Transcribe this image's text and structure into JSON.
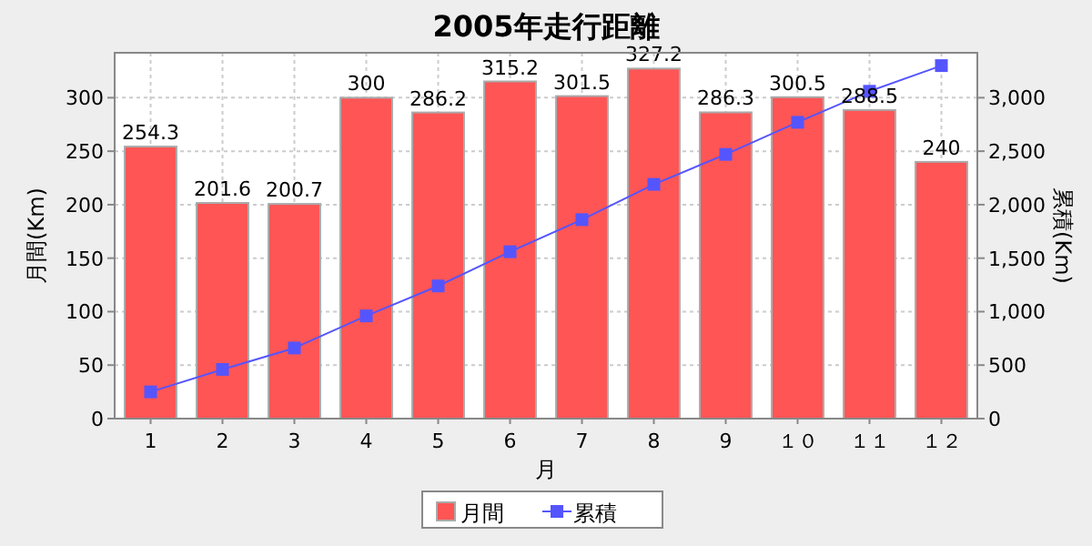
{
  "chart_data": {
    "type": "bar",
    "title": "2005年走行距離",
    "xlabel": "月",
    "ylabel": "月間(Km)",
    "y2label": "累積(Km)",
    "categories": [
      "1",
      "2",
      "3",
      "4",
      "5",
      "6",
      "7",
      "8",
      "9",
      "１０",
      "１１",
      "１２"
    ],
    "series": [
      {
        "name": "月間",
        "color": "#ff5555",
        "values": [
          254.3,
          201.6,
          200.7,
          300,
          286.2,
          315.2,
          301.5,
          327.2,
          286.3,
          300.5,
          288.5,
          240
        ],
        "data_labels": true
      },
      {
        "name": "累積",
        "type": "line",
        "axis": "y2",
        "color": "#5555ff",
        "marker": "square",
        "values": [
          250,
          460,
          660,
          960,
          1240,
          1560,
          1860,
          2190,
          2470,
          2770,
          3060,
          3300
        ]
      }
    ],
    "ylim": [
      0,
      342
    ],
    "yticks": [
      0,
      50,
      100,
      150,
      200,
      250,
      300
    ],
    "y2lim": [
      0,
      3420
    ],
    "y2ticks": [
      0,
      {
        "value": 500,
        "label": "500"
      },
      {
        "value": 1000,
        "label": "1,000"
      },
      {
        "value": 1500,
        "label": "1,500"
      },
      {
        "value": 2000,
        "label": "2,000"
      },
      {
        "value": 2500,
        "label": "2,500"
      },
      {
        "value": 3000,
        "label": "3,000"
      }
    ],
    "grid": true,
    "legend": "bottom"
  }
}
